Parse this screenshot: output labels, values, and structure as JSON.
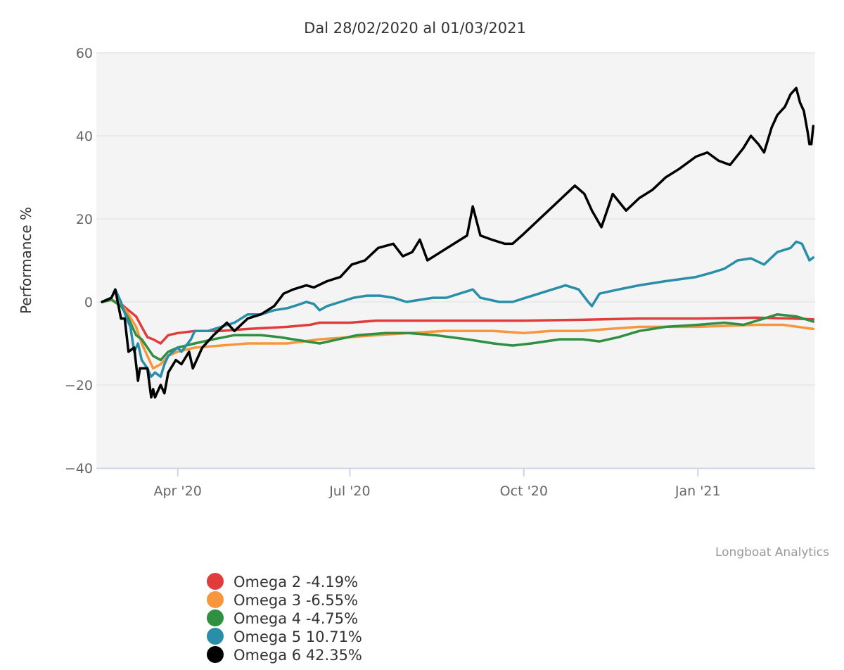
{
  "chart_data": {
    "type": "line",
    "title": "Dal 28/02/2020 al 01/03/2021",
    "ylabel": "Performance %",
    "xlabel": "",
    "ylim": [
      -40,
      60
    ],
    "xlim": [
      "2020-02-18",
      "2021-03-04"
    ],
    "yticks": [
      -40,
      -20,
      0,
      20,
      40,
      60
    ],
    "xticks": [
      {
        "date": "2020-04-01",
        "label": "Apr '20"
      },
      {
        "date": "2020-07-01",
        "label": "Jul '20"
      },
      {
        "date": "2020-10-01",
        "label": "Oct '20"
      },
      {
        "date": "2021-01-01",
        "label": "Jan '21"
      }
    ],
    "grid": "horizontal",
    "plot_background": "#f4f4f4",
    "legend_position": "bottom-left",
    "credit": "Longboat Analytics",
    "series": [
      {
        "name": "Omega 2 -4.19%",
        "color": "#e03c3c",
        "points": [
          [
            "2020-02-21",
            0
          ],
          [
            "2020-02-26",
            0.5
          ],
          [
            "2020-03-02",
            -0.5
          ],
          [
            "2020-03-06",
            -2
          ],
          [
            "2020-03-10",
            -3.5
          ],
          [
            "2020-03-13",
            -6
          ],
          [
            "2020-03-16",
            -8.5
          ],
          [
            "2020-03-19",
            -9
          ],
          [
            "2020-03-23",
            -10
          ],
          [
            "2020-03-27",
            -8
          ],
          [
            "2020-04-01",
            -7.5
          ],
          [
            "2020-04-10",
            -7
          ],
          [
            "2020-04-24",
            -7
          ],
          [
            "2020-05-08",
            -6.5
          ],
          [
            "2020-05-29",
            -6
          ],
          [
            "2020-06-10",
            -5.5
          ],
          [
            "2020-06-15",
            -5
          ],
          [
            "2020-07-01",
            -5
          ],
          [
            "2020-07-15",
            -4.5
          ],
          [
            "2020-08-15",
            -4.5
          ],
          [
            "2020-09-15",
            -4.5
          ],
          [
            "2020-10-01",
            -4.5
          ],
          [
            "2020-11-01",
            -4.3
          ],
          [
            "2020-12-01",
            -4
          ],
          [
            "2021-01-01",
            -4
          ],
          [
            "2021-02-01",
            -3.8
          ],
          [
            "2021-02-20",
            -4
          ],
          [
            "2021-03-03",
            -4.2
          ]
        ]
      },
      {
        "name": "Omega 3 -6.55%",
        "color": "#f7963c",
        "points": [
          [
            "2020-02-21",
            0
          ],
          [
            "2020-02-26",
            0.5
          ],
          [
            "2020-03-02",
            -0.5
          ],
          [
            "2020-03-06",
            -3
          ],
          [
            "2020-03-10",
            -6
          ],
          [
            "2020-03-13",
            -10
          ],
          [
            "2020-03-16",
            -13
          ],
          [
            "2020-03-19",
            -16
          ],
          [
            "2020-03-23",
            -15
          ],
          [
            "2020-03-27",
            -13
          ],
          [
            "2020-04-01",
            -12
          ],
          [
            "2020-04-10",
            -11
          ],
          [
            "2020-04-24",
            -10.5
          ],
          [
            "2020-05-08",
            -10
          ],
          [
            "2020-05-29",
            -10
          ],
          [
            "2020-06-15",
            -9
          ],
          [
            "2020-07-01",
            -8.5
          ],
          [
            "2020-07-15",
            -8
          ],
          [
            "2020-08-01",
            -7.5
          ],
          [
            "2020-08-20",
            -7
          ],
          [
            "2020-09-15",
            -7
          ],
          [
            "2020-10-01",
            -7.5
          ],
          [
            "2020-10-15",
            -7
          ],
          [
            "2020-11-01",
            -7
          ],
          [
            "2020-11-15",
            -6.5
          ],
          [
            "2020-12-01",
            -6
          ],
          [
            "2021-01-01",
            -6
          ],
          [
            "2021-02-01",
            -5.5
          ],
          [
            "2021-02-15",
            -5.5
          ],
          [
            "2021-03-03",
            -6.5
          ]
        ]
      },
      {
        "name": "Omega 4 -4.75%",
        "color": "#2e9040",
        "points": [
          [
            "2020-02-21",
            0
          ],
          [
            "2020-02-26",
            0.5
          ],
          [
            "2020-03-02",
            -1
          ],
          [
            "2020-03-06",
            -4
          ],
          [
            "2020-03-10",
            -8
          ],
          [
            "2020-03-13",
            -9
          ],
          [
            "2020-03-16",
            -11
          ],
          [
            "2020-03-19",
            -13
          ],
          [
            "2020-03-23",
            -14
          ],
          [
            "2020-03-27",
            -12
          ],
          [
            "2020-04-01",
            -11
          ],
          [
            "2020-04-10",
            -10
          ],
          [
            "2020-04-20",
            -9
          ],
          [
            "2020-05-01",
            -8
          ],
          [
            "2020-05-15",
            -8
          ],
          [
            "2020-05-25",
            -8.5
          ],
          [
            "2020-06-01",
            -9
          ],
          [
            "2020-06-15",
            -10
          ],
          [
            "2020-06-25",
            -9
          ],
          [
            "2020-07-05",
            -8
          ],
          [
            "2020-07-20",
            -7.5
          ],
          [
            "2020-08-01",
            -7.5
          ],
          [
            "2020-08-15",
            -8
          ],
          [
            "2020-09-01",
            -9
          ],
          [
            "2020-09-15",
            -10
          ],
          [
            "2020-09-25",
            -10.5
          ],
          [
            "2020-10-05",
            -10
          ],
          [
            "2020-10-20",
            -9
          ],
          [
            "2020-11-01",
            -9
          ],
          [
            "2020-11-10",
            -9.5
          ],
          [
            "2020-11-20",
            -8.5
          ],
          [
            "2020-12-01",
            -7
          ],
          [
            "2020-12-15",
            -6
          ],
          [
            "2021-01-01",
            -5.5
          ],
          [
            "2021-01-15",
            -5
          ],
          [
            "2021-01-25",
            -5.5
          ],
          [
            "2021-02-05",
            -4
          ],
          [
            "2021-02-12",
            -3
          ],
          [
            "2021-02-22",
            -3.5
          ],
          [
            "2021-03-03",
            -4.75
          ]
        ]
      },
      {
        "name": "Omega 5 10.71%",
        "color": "#2a8ea8",
        "points": [
          [
            "2020-02-21",
            0
          ],
          [
            "2020-02-26",
            1
          ],
          [
            "2020-02-28",
            3
          ],
          [
            "2020-03-02",
            0
          ],
          [
            "2020-03-05",
            -4
          ],
          [
            "2020-03-07",
            -6
          ],
          [
            "2020-03-09",
            -12
          ],
          [
            "2020-03-11",
            -10
          ],
          [
            "2020-03-13",
            -14
          ],
          [
            "2020-03-16",
            -16
          ],
          [
            "2020-03-18",
            -18
          ],
          [
            "2020-03-20",
            -17
          ],
          [
            "2020-03-23",
            -18
          ],
          [
            "2020-03-25",
            -15
          ],
          [
            "2020-03-27",
            -13
          ],
          [
            "2020-04-01",
            -11
          ],
          [
            "2020-04-03",
            -12
          ],
          [
            "2020-04-08",
            -9
          ],
          [
            "2020-04-10",
            -7
          ],
          [
            "2020-04-17",
            -7
          ],
          [
            "2020-04-24",
            -6
          ],
          [
            "2020-05-01",
            -5
          ],
          [
            "2020-05-08",
            -3
          ],
          [
            "2020-05-15",
            -3
          ],
          [
            "2020-05-22",
            -2
          ],
          [
            "2020-05-29",
            -1.5
          ],
          [
            "2020-06-05",
            -0.5
          ],
          [
            "2020-06-08",
            0
          ],
          [
            "2020-06-12",
            -0.5
          ],
          [
            "2020-06-15",
            -2
          ],
          [
            "2020-06-19",
            -1
          ],
          [
            "2020-06-26",
            0
          ],
          [
            "2020-07-03",
            1
          ],
          [
            "2020-07-10",
            1.5
          ],
          [
            "2020-07-17",
            1.5
          ],
          [
            "2020-07-24",
            1
          ],
          [
            "2020-07-31",
            0
          ],
          [
            "2020-08-07",
            0.5
          ],
          [
            "2020-08-14",
            1
          ],
          [
            "2020-08-21",
            1
          ],
          [
            "2020-08-28",
            2
          ],
          [
            "2020-09-04",
            3
          ],
          [
            "2020-09-08",
            1
          ],
          [
            "2020-09-18",
            0
          ],
          [
            "2020-09-25",
            0
          ],
          [
            "2020-10-02",
            1
          ],
          [
            "2020-10-09",
            2
          ],
          [
            "2020-10-16",
            3
          ],
          [
            "2020-10-23",
            4
          ],
          [
            "2020-10-30",
            3
          ],
          [
            "2020-11-04",
            0
          ],
          [
            "2020-11-06",
            -1
          ],
          [
            "2020-11-10",
            2
          ],
          [
            "2020-11-20",
            3
          ],
          [
            "2020-12-01",
            4
          ],
          [
            "2020-12-15",
            5
          ],
          [
            "2020-12-31",
            6
          ],
          [
            "2021-01-08",
            7
          ],
          [
            "2021-01-15",
            8
          ],
          [
            "2021-01-22",
            10
          ],
          [
            "2021-01-29",
            10.5
          ],
          [
            "2021-02-05",
            9
          ],
          [
            "2021-02-12",
            12
          ],
          [
            "2021-02-19",
            13
          ],
          [
            "2021-02-22",
            14.5
          ],
          [
            "2021-02-25",
            14
          ],
          [
            "2021-03-01",
            10
          ],
          [
            "2021-03-03",
            10.7
          ]
        ]
      },
      {
        "name": "Omega 6 42.35%",
        "color": "#000000",
        "points": [
          [
            "2020-02-21",
            0
          ],
          [
            "2020-02-26",
            1
          ],
          [
            "2020-02-28",
            3
          ],
          [
            "2020-03-02",
            -4
          ],
          [
            "2020-03-04",
            -4
          ],
          [
            "2020-03-06",
            -12
          ],
          [
            "2020-03-09",
            -11
          ],
          [
            "2020-03-11",
            -19
          ],
          [
            "2020-03-12",
            -16
          ],
          [
            "2020-03-16",
            -16
          ],
          [
            "2020-03-18",
            -23
          ],
          [
            "2020-03-19",
            -21
          ],
          [
            "2020-03-20",
            -23
          ],
          [
            "2020-03-23",
            -20
          ],
          [
            "2020-03-25",
            -22
          ],
          [
            "2020-03-27",
            -17
          ],
          [
            "2020-03-31",
            -14
          ],
          [
            "2020-04-03",
            -15
          ],
          [
            "2020-04-07",
            -12
          ],
          [
            "2020-04-09",
            -16
          ],
          [
            "2020-04-14",
            -11
          ],
          [
            "2020-04-20",
            -8
          ],
          [
            "2020-04-27",
            -5
          ],
          [
            "2020-05-01",
            -7
          ],
          [
            "2020-05-08",
            -4
          ],
          [
            "2020-05-15",
            -3
          ],
          [
            "2020-05-22",
            -1
          ],
          [
            "2020-05-27",
            2
          ],
          [
            "2020-06-01",
            3
          ],
          [
            "2020-06-08",
            4
          ],
          [
            "2020-06-12",
            3.5
          ],
          [
            "2020-06-19",
            5
          ],
          [
            "2020-06-26",
            6
          ],
          [
            "2020-07-02",
            9
          ],
          [
            "2020-07-09",
            10
          ],
          [
            "2020-07-16",
            13
          ],
          [
            "2020-07-24",
            14
          ],
          [
            "2020-07-29",
            11
          ],
          [
            "2020-08-03",
            12
          ],
          [
            "2020-08-07",
            15
          ],
          [
            "2020-08-11",
            10
          ],
          [
            "2020-08-18",
            12
          ],
          [
            "2020-08-25",
            14
          ],
          [
            "2020-09-01",
            16
          ],
          [
            "2020-09-04",
            23
          ],
          [
            "2020-09-08",
            16
          ],
          [
            "2020-09-14",
            15
          ],
          [
            "2020-09-21",
            14
          ],
          [
            "2020-09-25",
            14
          ],
          [
            "2020-09-30",
            16
          ],
          [
            "2020-10-07",
            19
          ],
          [
            "2020-10-14",
            22
          ],
          [
            "2020-10-21",
            25
          ],
          [
            "2020-10-28",
            28
          ],
          [
            "2020-11-02",
            26
          ],
          [
            "2020-11-06",
            22
          ],
          [
            "2020-11-11",
            18
          ],
          [
            "2020-11-17",
            26
          ],
          [
            "2020-11-24",
            22
          ],
          [
            "2020-12-01",
            25
          ],
          [
            "2020-12-08",
            27
          ],
          [
            "2020-12-15",
            30
          ],
          [
            "2020-12-22",
            32
          ],
          [
            "2020-12-31",
            35
          ],
          [
            "2021-01-06",
            36
          ],
          [
            "2021-01-12",
            34
          ],
          [
            "2021-01-18",
            33
          ],
          [
            "2021-01-25",
            37
          ],
          [
            "2021-01-29",
            40
          ],
          [
            "2021-02-02",
            38
          ],
          [
            "2021-02-05",
            36
          ],
          [
            "2021-02-09",
            42
          ],
          [
            "2021-02-12",
            45
          ],
          [
            "2021-02-16",
            47
          ],
          [
            "2021-02-19",
            50
          ],
          [
            "2021-02-22",
            51.5
          ],
          [
            "2021-02-24",
            48
          ],
          [
            "2021-02-26",
            46
          ],
          [
            "2021-02-28",
            41
          ],
          [
            "2021-03-01",
            38
          ],
          [
            "2021-03-02",
            38
          ],
          [
            "2021-03-03",
            42.35
          ]
        ]
      }
    ]
  }
}
